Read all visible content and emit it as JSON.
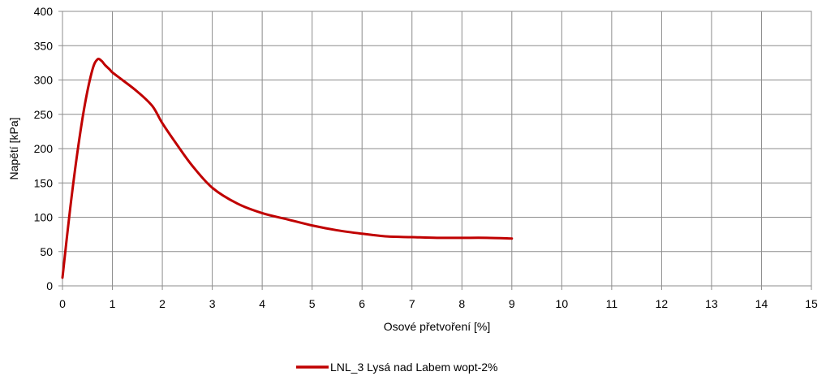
{
  "chart_data": {
    "type": "line",
    "title": "",
    "xlabel": "Osové přetvoření [%]",
    "ylabel": "Napětí [kPa]",
    "xlim": [
      0,
      15
    ],
    "ylim": [
      0,
      400
    ],
    "x_ticks": [
      0,
      1,
      2,
      3,
      4,
      5,
      6,
      7,
      8,
      9,
      10,
      11,
      12,
      13,
      14,
      15
    ],
    "y_ticks": [
      0,
      50,
      100,
      150,
      200,
      250,
      300,
      350,
      400
    ],
    "grid": true,
    "legend_position": "bottom-center",
    "series": [
      {
        "name": "LNL_3 Lysá nad Labem wopt-2%",
        "color": "#c00000",
        "x": [
          0.0,
          0.15,
          0.3,
          0.45,
          0.6,
          0.7,
          0.78,
          0.85,
          0.95,
          1.0,
          1.2,
          1.5,
          1.8,
          2.0,
          2.3,
          2.6,
          3.0,
          3.5,
          4.0,
          4.5,
          5.0,
          5.5,
          6.0,
          6.5,
          7.0,
          7.5,
          8.0,
          8.5,
          9.0
        ],
        "y": [
          12,
          110,
          195,
          265,
          315,
          330,
          328,
          322,
          315,
          311,
          300,
          283,
          262,
          237,
          205,
          175,
          143,
          120,
          106,
          97,
          88,
          81,
          76,
          72,
          71,
          70,
          70,
          70,
          69
        ]
      }
    ]
  }
}
